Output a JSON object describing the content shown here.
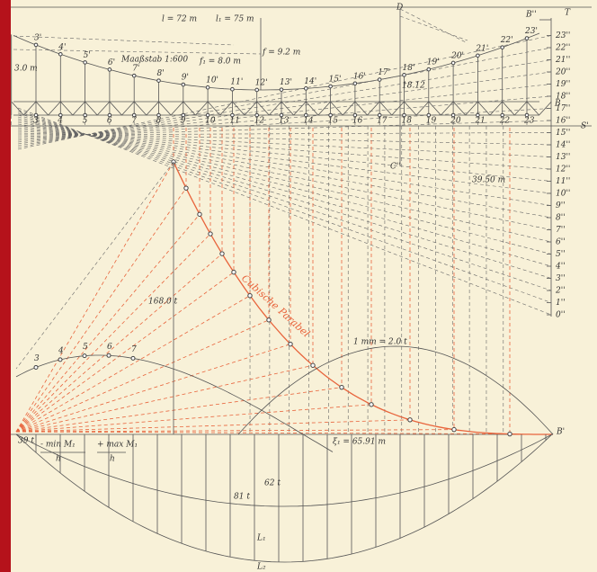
{
  "labels": {
    "span_l": "l = 72 m",
    "span_l1": "l₁ = 75 m",
    "scale_note": "Maaßstab 1:600",
    "sag_f": "f = 9.2 m",
    "sag_f1": "f₁ = 8.0 m",
    "left_dim": "3.0 m",
    "point_d": "D",
    "point_b2": "B''",
    "point_t": "T",
    "point_b": "B",
    "point_s": "S'",
    "point_c": "C''",
    "dim_c": "39.50 m",
    "dim_d": "18.12",
    "force_168": "168.0 t",
    "curve_name": "Cubische Parabel",
    "force_scale": "1 mm = 2.0 t",
    "xi": "ξ₁ = 65.91 m",
    "point_b1": "B'",
    "left_force": "39 t",
    "min_m": "- min M₁",
    "max_m": "+ max M₁",
    "h1": "h",
    "h2": "h",
    "force_62": "62 t",
    "force_81": "81 t",
    "l1_label": "L₁",
    "l2_label": "L₂"
  },
  "scale_labels": [
    "0''",
    "1''",
    "2''",
    "3''",
    "4''",
    "5''",
    "6''",
    "7''",
    "8''",
    "9''",
    "10''",
    "11''",
    "12''",
    "13''",
    "14''",
    "15''",
    "16''",
    "17''",
    "18''",
    "19''",
    "20''",
    "21''",
    "22''",
    "23''"
  ],
  "cable_labels": [
    "3'",
    "4'",
    "5'",
    "6'",
    "7'",
    "8'",
    "9'",
    "10'",
    "11'",
    "12'",
    "13'",
    "14'",
    "15'",
    "16'",
    "17'",
    "18'",
    "19'",
    "20'",
    "21'",
    "22'",
    "23'"
  ],
  "chord_labels": [
    "3",
    "4",
    "5",
    "6",
    "7",
    "8",
    "9",
    "10",
    "11",
    "12",
    "13",
    "14",
    "15",
    "16",
    "17",
    "18",
    "19",
    "20",
    "21",
    "22",
    "23"
  ],
  "lower_labels": [
    "3",
    "4",
    "5",
    "6",
    "7"
  ]
}
